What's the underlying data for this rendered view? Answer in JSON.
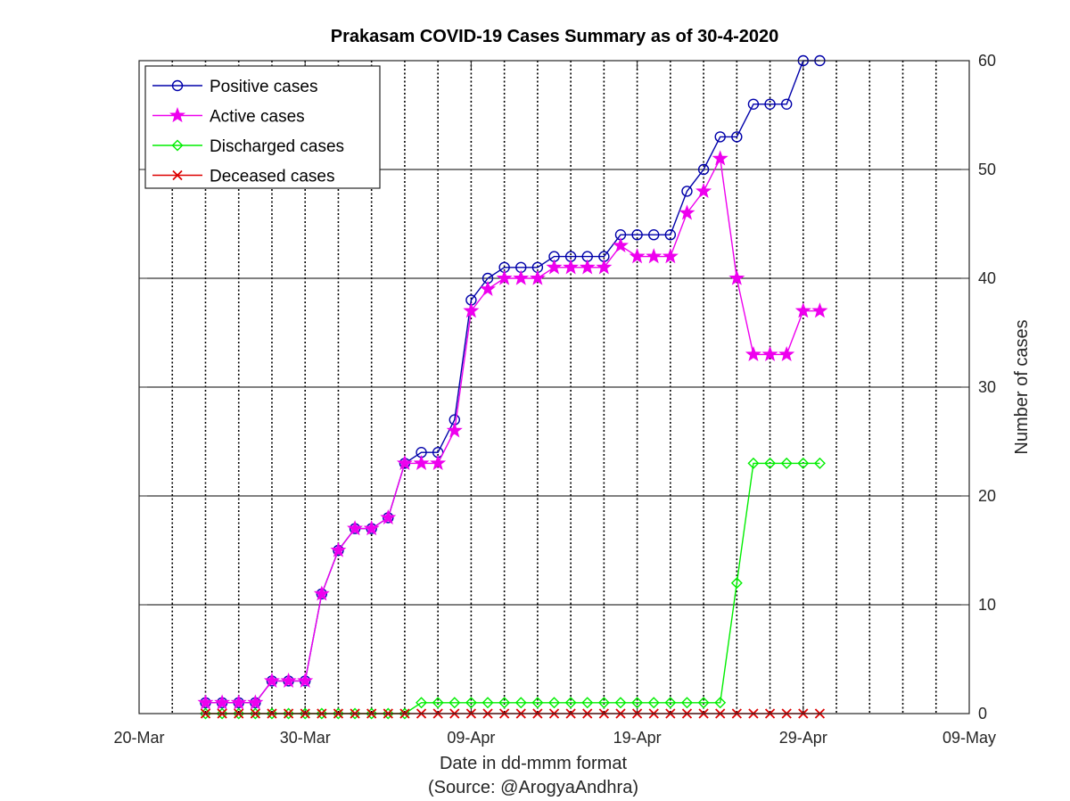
{
  "chart_data": {
    "type": "line",
    "title": "Prakasam COVID-19 Cases Summary as of 30-4-2020",
    "xlabel": "Date in dd-mmm format",
    "xlabel_note": "(Source: @ArogyaAndhra)",
    "ylabel": "Number of cases",
    "x_ticks": [
      "20-Mar",
      "30-Mar",
      "09-Apr",
      "19-Apr",
      "29-Apr",
      "09-May"
    ],
    "y_ticks": [
      "0",
      "10",
      "20",
      "30",
      "40",
      "50",
      "60"
    ],
    "xlim": [
      "2020-03-20",
      "2020-05-09"
    ],
    "ylim": [
      0,
      60
    ],
    "y_axis_side": "right",
    "grid": "dotted vertical daily lines, solid horizontal lines",
    "legend_position": "top-left",
    "series": [
      {
        "name": "Positive cases",
        "color": "#0000aa",
        "marker": "circle",
        "points": [
          [
            "2020-03-24",
            1
          ],
          [
            "2020-03-25",
            1
          ],
          [
            "2020-03-26",
            1
          ],
          [
            "2020-03-27",
            1
          ],
          [
            "2020-03-28",
            3
          ],
          [
            "2020-03-29",
            3
          ],
          [
            "2020-03-30",
            3
          ],
          [
            "2020-03-31",
            11
          ],
          [
            "2020-04-01",
            15
          ],
          [
            "2020-04-02",
            17
          ],
          [
            "2020-04-03",
            17
          ],
          [
            "2020-04-04",
            18
          ],
          [
            "2020-04-05",
            23
          ],
          [
            "2020-04-06",
            24
          ],
          [
            "2020-04-07",
            24
          ],
          [
            "2020-04-08",
            27
          ],
          [
            "2020-04-09",
            38
          ],
          [
            "2020-04-10",
            40
          ],
          [
            "2020-04-11",
            41
          ],
          [
            "2020-04-12",
            41
          ],
          [
            "2020-04-13",
            41
          ],
          [
            "2020-04-14",
            42
          ],
          [
            "2020-04-15",
            42
          ],
          [
            "2020-04-16",
            42
          ],
          [
            "2020-04-17",
            42
          ],
          [
            "2020-04-18",
            44
          ],
          [
            "2020-04-19",
            44
          ],
          [
            "2020-04-20",
            44
          ],
          [
            "2020-04-21",
            44
          ],
          [
            "2020-04-22",
            48
          ],
          [
            "2020-04-23",
            50
          ],
          [
            "2020-04-24",
            53
          ],
          [
            "2020-04-25",
            53
          ],
          [
            "2020-04-26",
            56
          ],
          [
            "2020-04-27",
            56
          ],
          [
            "2020-04-28",
            56
          ],
          [
            "2020-04-29",
            60
          ],
          [
            "2020-04-30",
            60
          ]
        ]
      },
      {
        "name": "Active cases",
        "color": "#ee00ee",
        "marker": "star",
        "points": [
          [
            "2020-03-24",
            1
          ],
          [
            "2020-03-25",
            1
          ],
          [
            "2020-03-26",
            1
          ],
          [
            "2020-03-27",
            1
          ],
          [
            "2020-03-28",
            3
          ],
          [
            "2020-03-29",
            3
          ],
          [
            "2020-03-30",
            3
          ],
          [
            "2020-03-31",
            11
          ],
          [
            "2020-04-01",
            15
          ],
          [
            "2020-04-02",
            17
          ],
          [
            "2020-04-03",
            17
          ],
          [
            "2020-04-04",
            18
          ],
          [
            "2020-04-05",
            23
          ],
          [
            "2020-04-06",
            23
          ],
          [
            "2020-04-07",
            23
          ],
          [
            "2020-04-08",
            26
          ],
          [
            "2020-04-09",
            37
          ],
          [
            "2020-04-10",
            39
          ],
          [
            "2020-04-11",
            40
          ],
          [
            "2020-04-12",
            40
          ],
          [
            "2020-04-13",
            40
          ],
          [
            "2020-04-14",
            41
          ],
          [
            "2020-04-15",
            41
          ],
          [
            "2020-04-16",
            41
          ],
          [
            "2020-04-17",
            41
          ],
          [
            "2020-04-18",
            43
          ],
          [
            "2020-04-19",
            42
          ],
          [
            "2020-04-20",
            42
          ],
          [
            "2020-04-21",
            42
          ],
          [
            "2020-04-22",
            46
          ],
          [
            "2020-04-23",
            48
          ],
          [
            "2020-04-24",
            51
          ],
          [
            "2020-04-25",
            40
          ],
          [
            "2020-04-26",
            33
          ],
          [
            "2020-04-27",
            33
          ],
          [
            "2020-04-28",
            33
          ],
          [
            "2020-04-29",
            37
          ],
          [
            "2020-04-30",
            37
          ]
        ]
      },
      {
        "name": "Discharged cases",
        "color": "#00ee00",
        "marker": "diamond",
        "points": [
          [
            "2020-03-24",
            0
          ],
          [
            "2020-03-25",
            0
          ],
          [
            "2020-03-26",
            0
          ],
          [
            "2020-03-27",
            0
          ],
          [
            "2020-03-28",
            0
          ],
          [
            "2020-03-29",
            0
          ],
          [
            "2020-03-30",
            0
          ],
          [
            "2020-03-31",
            0
          ],
          [
            "2020-04-01",
            0
          ],
          [
            "2020-04-02",
            0
          ],
          [
            "2020-04-03",
            0
          ],
          [
            "2020-04-04",
            0
          ],
          [
            "2020-04-05",
            0
          ],
          [
            "2020-04-06",
            1
          ],
          [
            "2020-04-07",
            1
          ],
          [
            "2020-04-08",
            1
          ],
          [
            "2020-04-09",
            1
          ],
          [
            "2020-04-10",
            1
          ],
          [
            "2020-04-11",
            1
          ],
          [
            "2020-04-12",
            1
          ],
          [
            "2020-04-13",
            1
          ],
          [
            "2020-04-14",
            1
          ],
          [
            "2020-04-15",
            1
          ],
          [
            "2020-04-16",
            1
          ],
          [
            "2020-04-17",
            1
          ],
          [
            "2020-04-18",
            1
          ],
          [
            "2020-04-19",
            1
          ],
          [
            "2020-04-20",
            1
          ],
          [
            "2020-04-21",
            1
          ],
          [
            "2020-04-22",
            1
          ],
          [
            "2020-04-23",
            1
          ],
          [
            "2020-04-24",
            1
          ],
          [
            "2020-04-25",
            12
          ],
          [
            "2020-04-26",
            23
          ],
          [
            "2020-04-27",
            23
          ],
          [
            "2020-04-28",
            23
          ],
          [
            "2020-04-29",
            23
          ],
          [
            "2020-04-30",
            23
          ]
        ]
      },
      {
        "name": "Deceased cases",
        "color": "#dd0000",
        "marker": "x",
        "points": [
          [
            "2020-03-24",
            0
          ],
          [
            "2020-03-25",
            0
          ],
          [
            "2020-03-26",
            0
          ],
          [
            "2020-03-27",
            0
          ],
          [
            "2020-03-28",
            0
          ],
          [
            "2020-03-29",
            0
          ],
          [
            "2020-03-30",
            0
          ],
          [
            "2020-03-31",
            0
          ],
          [
            "2020-04-01",
            0
          ],
          [
            "2020-04-02",
            0
          ],
          [
            "2020-04-03",
            0
          ],
          [
            "2020-04-04",
            0
          ],
          [
            "2020-04-05",
            0
          ],
          [
            "2020-04-06",
            0
          ],
          [
            "2020-04-07",
            0
          ],
          [
            "2020-04-08",
            0
          ],
          [
            "2020-04-09",
            0
          ],
          [
            "2020-04-10",
            0
          ],
          [
            "2020-04-11",
            0
          ],
          [
            "2020-04-12",
            0
          ],
          [
            "2020-04-13",
            0
          ],
          [
            "2020-04-14",
            0
          ],
          [
            "2020-04-15",
            0
          ],
          [
            "2020-04-16",
            0
          ],
          [
            "2020-04-17",
            0
          ],
          [
            "2020-04-18",
            0
          ],
          [
            "2020-04-19",
            0
          ],
          [
            "2020-04-20",
            0
          ],
          [
            "2020-04-21",
            0
          ],
          [
            "2020-04-22",
            0
          ],
          [
            "2020-04-23",
            0
          ],
          [
            "2020-04-24",
            0
          ],
          [
            "2020-04-25",
            0
          ],
          [
            "2020-04-26",
            0
          ],
          [
            "2020-04-27",
            0
          ],
          [
            "2020-04-28",
            0
          ],
          [
            "2020-04-29",
            0
          ],
          [
            "2020-04-30",
            0
          ]
        ]
      }
    ]
  }
}
